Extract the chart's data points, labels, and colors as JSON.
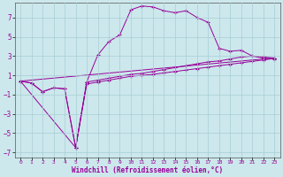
{
  "bg_color": "#cce8ec",
  "grid_color": "#a8cdd4",
  "line_color": "#990099",
  "xlabel": "Windchill (Refroidissement éolien,°C)",
  "xlim": [
    -0.5,
    23.5
  ],
  "ylim": [
    -7.5,
    8.5
  ],
  "yticks": [
    -7,
    -5,
    -3,
    -1,
    1,
    3,
    5,
    7
  ],
  "xticks": [
    0,
    1,
    2,
    3,
    4,
    5,
    6,
    7,
    8,
    9,
    10,
    11,
    12,
    13,
    14,
    15,
    16,
    17,
    18,
    19,
    20,
    21,
    22,
    23
  ],
  "line1_x": [
    0,
    1,
    2,
    3,
    4,
    5,
    6,
    7,
    8,
    9,
    10,
    11,
    12,
    13,
    14,
    15,
    16,
    17,
    18,
    19,
    20,
    21,
    22,
    23
  ],
  "line1_y": [
    0.4,
    0.2,
    -0.7,
    -0.3,
    -0.4,
    -6.5,
    0.3,
    3.1,
    4.5,
    5.2,
    7.8,
    8.2,
    8.1,
    7.7,
    7.5,
    7.7,
    7.0,
    6.5,
    3.8,
    3.5,
    3.6,
    3.0,
    2.8,
    2.7
  ],
  "line2_x": [
    0,
    1,
    2,
    3,
    4,
    5,
    6,
    7,
    8,
    9,
    10,
    11,
    12,
    13,
    14,
    15,
    16,
    17,
    18,
    19,
    20,
    21,
    22,
    23
  ],
  "line2_y": [
    0.4,
    0.2,
    -0.7,
    -0.3,
    -0.4,
    -6.5,
    0.3,
    0.5,
    0.7,
    0.9,
    1.1,
    1.2,
    1.4,
    1.6,
    1.8,
    2.0,
    2.2,
    2.4,
    2.5,
    2.7,
    2.9,
    3.0,
    2.9,
    2.8
  ],
  "line3_x": [
    0,
    5,
    6,
    7,
    8,
    9,
    10,
    11,
    12,
    13,
    14,
    15,
    16,
    17,
    18,
    19,
    20,
    21,
    22,
    23
  ],
  "line3_y": [
    0.4,
    -6.5,
    0.1,
    0.3,
    0.5,
    0.7,
    0.9,
    1.0,
    1.1,
    1.25,
    1.4,
    1.55,
    1.7,
    1.85,
    2.0,
    2.15,
    2.3,
    2.45,
    2.6,
    2.75
  ],
  "line4_x": [
    0,
    23
  ],
  "line4_y": [
    0.4,
    2.8
  ]
}
